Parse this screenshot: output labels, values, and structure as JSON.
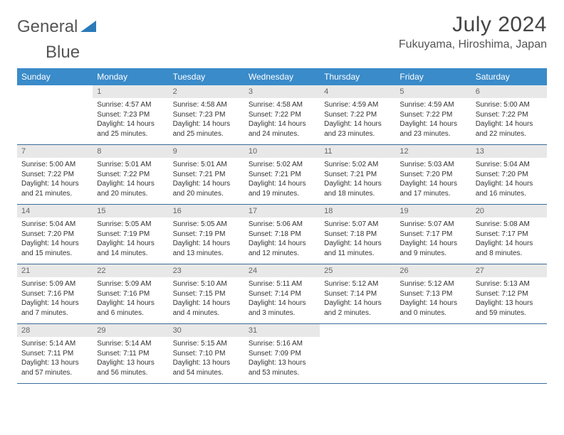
{
  "branding": {
    "logo_left": "General",
    "logo_right": "Blue",
    "logo_color_left": "#555555",
    "logo_color_right": "#2a7ab9"
  },
  "header": {
    "title": "July 2024",
    "location": "Fukuyama, Hiroshima, Japan"
  },
  "style": {
    "header_bg": "#3a8bc9",
    "header_text": "#ffffff",
    "daynum_bg": "#e8e8e8",
    "daynum_text": "#666666",
    "rule_color": "#3a6a9a",
    "body_text": "#333333",
    "page_bg": "#ffffff",
    "title_fontsize": 30,
    "location_fontsize": 16,
    "th_fontsize": 12,
    "daynum_fontsize": 11,
    "cell_fontsize": 10
  },
  "weekdays": [
    "Sunday",
    "Monday",
    "Tuesday",
    "Wednesday",
    "Thursday",
    "Friday",
    "Saturday"
  ],
  "weeks": [
    [
      {
        "blank": true
      },
      {
        "n": "1",
        "sr": "Sunrise: 4:57 AM",
        "ss": "Sunset: 7:23 PM",
        "dl": "Daylight: 14 hours and 25 minutes."
      },
      {
        "n": "2",
        "sr": "Sunrise: 4:58 AM",
        "ss": "Sunset: 7:23 PM",
        "dl": "Daylight: 14 hours and 25 minutes."
      },
      {
        "n": "3",
        "sr": "Sunrise: 4:58 AM",
        "ss": "Sunset: 7:22 PM",
        "dl": "Daylight: 14 hours and 24 minutes."
      },
      {
        "n": "4",
        "sr": "Sunrise: 4:59 AM",
        "ss": "Sunset: 7:22 PM",
        "dl": "Daylight: 14 hours and 23 minutes."
      },
      {
        "n": "5",
        "sr": "Sunrise: 4:59 AM",
        "ss": "Sunset: 7:22 PM",
        "dl": "Daylight: 14 hours and 23 minutes."
      },
      {
        "n": "6",
        "sr": "Sunrise: 5:00 AM",
        "ss": "Sunset: 7:22 PM",
        "dl": "Daylight: 14 hours and 22 minutes."
      }
    ],
    [
      {
        "n": "7",
        "sr": "Sunrise: 5:00 AM",
        "ss": "Sunset: 7:22 PM",
        "dl": "Daylight: 14 hours and 21 minutes."
      },
      {
        "n": "8",
        "sr": "Sunrise: 5:01 AM",
        "ss": "Sunset: 7:22 PM",
        "dl": "Daylight: 14 hours and 20 minutes."
      },
      {
        "n": "9",
        "sr": "Sunrise: 5:01 AM",
        "ss": "Sunset: 7:21 PM",
        "dl": "Daylight: 14 hours and 20 minutes."
      },
      {
        "n": "10",
        "sr": "Sunrise: 5:02 AM",
        "ss": "Sunset: 7:21 PM",
        "dl": "Daylight: 14 hours and 19 minutes."
      },
      {
        "n": "11",
        "sr": "Sunrise: 5:02 AM",
        "ss": "Sunset: 7:21 PM",
        "dl": "Daylight: 14 hours and 18 minutes."
      },
      {
        "n": "12",
        "sr": "Sunrise: 5:03 AM",
        "ss": "Sunset: 7:20 PM",
        "dl": "Daylight: 14 hours and 17 minutes."
      },
      {
        "n": "13",
        "sr": "Sunrise: 5:04 AM",
        "ss": "Sunset: 7:20 PM",
        "dl": "Daylight: 14 hours and 16 minutes."
      }
    ],
    [
      {
        "n": "14",
        "sr": "Sunrise: 5:04 AM",
        "ss": "Sunset: 7:20 PM",
        "dl": "Daylight: 14 hours and 15 minutes."
      },
      {
        "n": "15",
        "sr": "Sunrise: 5:05 AM",
        "ss": "Sunset: 7:19 PM",
        "dl": "Daylight: 14 hours and 14 minutes."
      },
      {
        "n": "16",
        "sr": "Sunrise: 5:05 AM",
        "ss": "Sunset: 7:19 PM",
        "dl": "Daylight: 14 hours and 13 minutes."
      },
      {
        "n": "17",
        "sr": "Sunrise: 5:06 AM",
        "ss": "Sunset: 7:18 PM",
        "dl": "Daylight: 14 hours and 12 minutes."
      },
      {
        "n": "18",
        "sr": "Sunrise: 5:07 AM",
        "ss": "Sunset: 7:18 PM",
        "dl": "Daylight: 14 hours and 11 minutes."
      },
      {
        "n": "19",
        "sr": "Sunrise: 5:07 AM",
        "ss": "Sunset: 7:17 PM",
        "dl": "Daylight: 14 hours and 9 minutes."
      },
      {
        "n": "20",
        "sr": "Sunrise: 5:08 AM",
        "ss": "Sunset: 7:17 PM",
        "dl": "Daylight: 14 hours and 8 minutes."
      }
    ],
    [
      {
        "n": "21",
        "sr": "Sunrise: 5:09 AM",
        "ss": "Sunset: 7:16 PM",
        "dl": "Daylight: 14 hours and 7 minutes."
      },
      {
        "n": "22",
        "sr": "Sunrise: 5:09 AM",
        "ss": "Sunset: 7:16 PM",
        "dl": "Daylight: 14 hours and 6 minutes."
      },
      {
        "n": "23",
        "sr": "Sunrise: 5:10 AM",
        "ss": "Sunset: 7:15 PM",
        "dl": "Daylight: 14 hours and 4 minutes."
      },
      {
        "n": "24",
        "sr": "Sunrise: 5:11 AM",
        "ss": "Sunset: 7:14 PM",
        "dl": "Daylight: 14 hours and 3 minutes."
      },
      {
        "n": "25",
        "sr": "Sunrise: 5:12 AM",
        "ss": "Sunset: 7:14 PM",
        "dl": "Daylight: 14 hours and 2 minutes."
      },
      {
        "n": "26",
        "sr": "Sunrise: 5:12 AM",
        "ss": "Sunset: 7:13 PM",
        "dl": "Daylight: 14 hours and 0 minutes."
      },
      {
        "n": "27",
        "sr": "Sunrise: 5:13 AM",
        "ss": "Sunset: 7:12 PM",
        "dl": "Daylight: 13 hours and 59 minutes."
      }
    ],
    [
      {
        "n": "28",
        "sr": "Sunrise: 5:14 AM",
        "ss": "Sunset: 7:11 PM",
        "dl": "Daylight: 13 hours and 57 minutes."
      },
      {
        "n": "29",
        "sr": "Sunrise: 5:14 AM",
        "ss": "Sunset: 7:11 PM",
        "dl": "Daylight: 13 hours and 56 minutes."
      },
      {
        "n": "30",
        "sr": "Sunrise: 5:15 AM",
        "ss": "Sunset: 7:10 PM",
        "dl": "Daylight: 13 hours and 54 minutes."
      },
      {
        "n": "31",
        "sr": "Sunrise: 5:16 AM",
        "ss": "Sunset: 7:09 PM",
        "dl": "Daylight: 13 hours and 53 minutes."
      },
      {
        "blank": true
      },
      {
        "blank": true
      },
      {
        "blank": true
      }
    ]
  ]
}
